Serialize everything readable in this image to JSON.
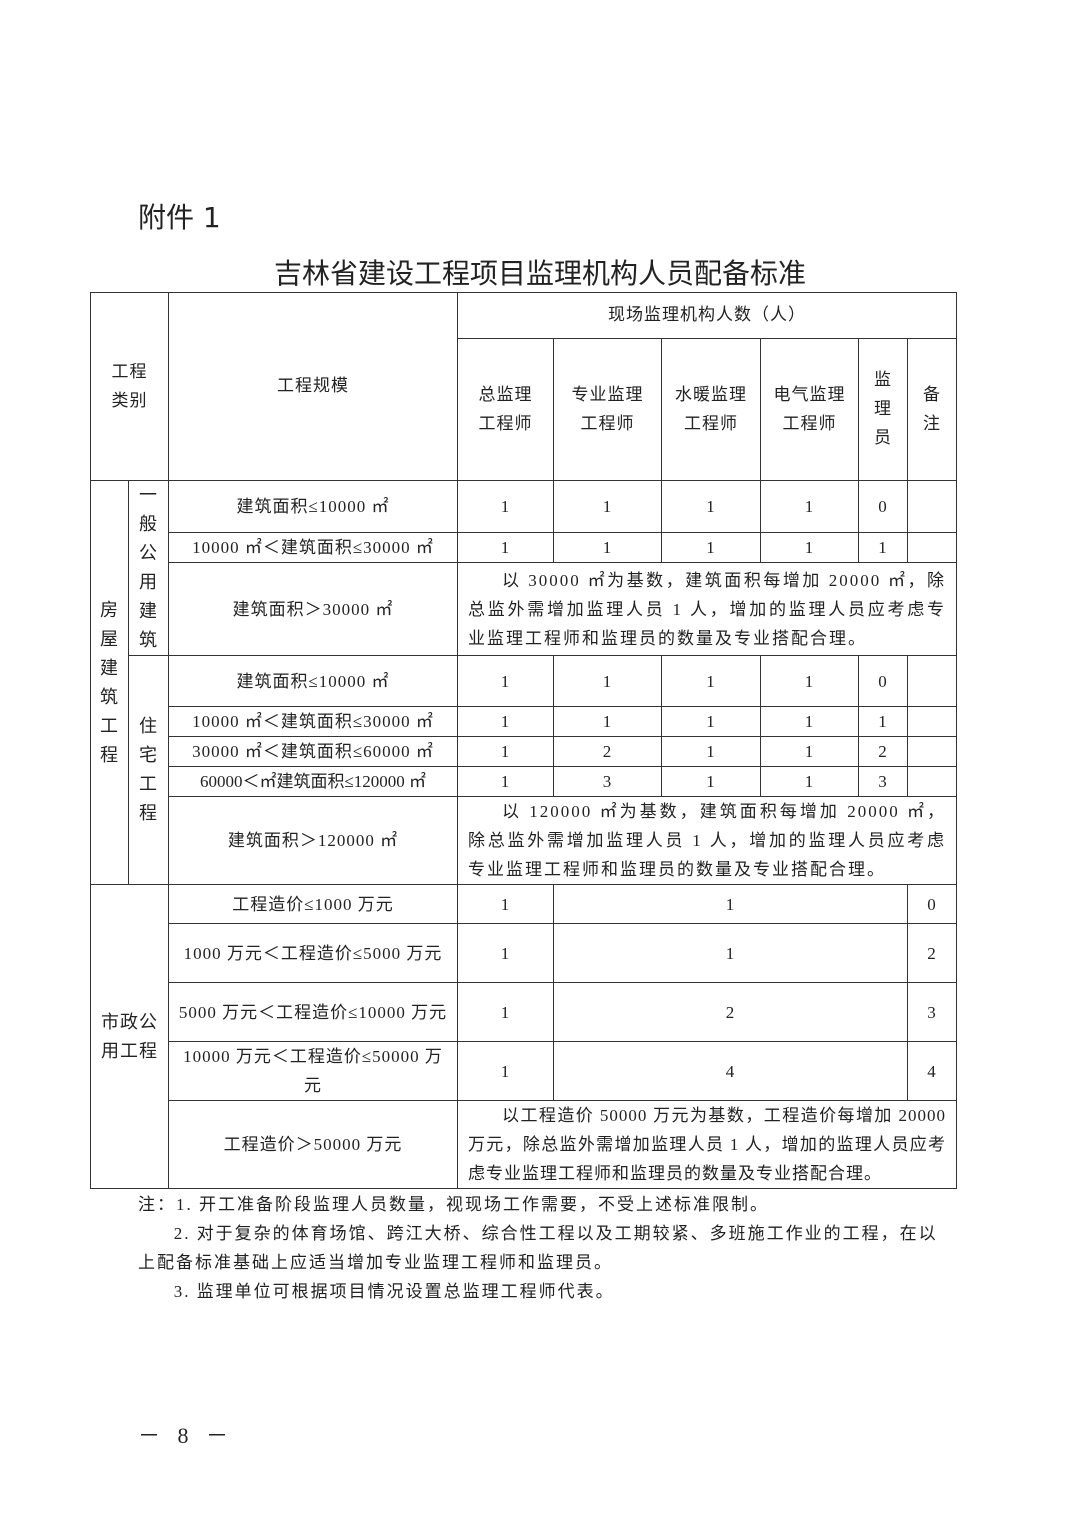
{
  "attachment": "附件 1",
  "title": "吉林省建设工程项目监理机构人员配备标准",
  "header": {
    "category": "工程类别",
    "scale": "工程规模",
    "group": "现场监理机构人数（人）",
    "cols": [
      "总监理工程师",
      "专业监理工程师",
      "水暖监理工程师",
      "电气监理工程师",
      "监理员",
      "备注"
    ]
  },
  "building": {
    "category": "房屋建筑工程",
    "public": {
      "label": "一般公用建筑",
      "rows": [
        {
          "scale": "建筑面积≤10000 ㎡",
          "values": [
            "1",
            "1",
            "1",
            "1",
            "0"
          ]
        },
        {
          "scale": "10000 ㎡＜建筑面积≤30000 ㎡",
          "values": [
            "1",
            "1",
            "1",
            "1",
            "1"
          ]
        }
      ],
      "over": {
        "scale": "建筑面积＞30000 ㎡",
        "note": "以 30000 ㎡为基数，建筑面积每增加 20000 ㎡，除总监外需增加监理人员 1 人，增加的监理人员应考虑专业监理工程师和监理员的数量及专业搭配合理。"
      }
    },
    "residential": {
      "label": "住宅工程",
      "rows": [
        {
          "scale": "建筑面积≤10000 ㎡",
          "values": [
            "1",
            "1",
            "1",
            "1",
            "0"
          ]
        },
        {
          "scale": "10000 ㎡＜建筑面积≤30000 ㎡",
          "values": [
            "1",
            "1",
            "1",
            "1",
            "1"
          ]
        },
        {
          "scale": "30000 ㎡＜建筑面积≤60000 ㎡",
          "values": [
            "1",
            "2",
            "1",
            "1",
            "2"
          ]
        },
        {
          "scale": "60000＜㎡建筑面积≤120000 ㎡",
          "values": [
            "1",
            "3",
            "1",
            "1",
            "3"
          ]
        }
      ],
      "over": {
        "scale": "建筑面积＞120000 ㎡",
        "note": "以 120000 ㎡为基数，建筑面积每增加 20000 ㎡，除总监外需增加监理人员 1 人，增加的监理人员应考虑专业监理工程师和监理员的数量及专业搭配合理。"
      }
    }
  },
  "municipal": {
    "category": "市政公用工程",
    "rows": [
      {
        "scale": "工程造价≤1000 万元",
        "values": [
          "1",
          "1",
          "0"
        ]
      },
      {
        "scale": "1000 万元＜工程造价≤5000 万元",
        "values": [
          "1",
          "1",
          "2"
        ]
      },
      {
        "scale": "5000 万元＜工程造价≤10000 万元",
        "values": [
          "1",
          "2",
          "3"
        ]
      },
      {
        "scale": "10000 万元＜工程造价≤50000 万元",
        "values": [
          "1",
          "4",
          "4"
        ]
      }
    ],
    "over": {
      "scale": "工程造价＞50000 万元",
      "note": "以工程造价 50000 万元为基数，工程造价每增加 20000 万元，除总监外需增加监理人员 1 人，增加的监理人员应考虑专业监理工程师和监理员的数量及专业搭配合理。"
    }
  },
  "notes": [
    "注：1. 开工准备阶段监理人员数量，视现场工作需要，不受上述标准限制。",
    "2. 对于复杂的体育场馆、跨江大桥、综合性工程以及工期较紧、多班施工作业的工程，在以上配备标准基础上应适当增加专业监理工程师和监理员。",
    "3. 监理单位可根据项目情况设置总监理工程师代表。"
  ],
  "page_number": "－ 8 －"
}
